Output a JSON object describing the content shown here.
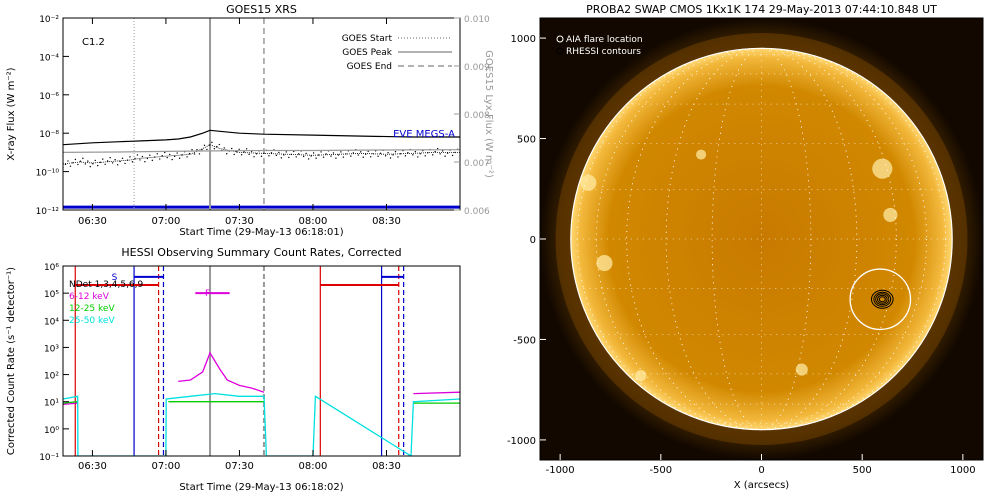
{
  "chart_data": [
    {
      "type": "line",
      "title": "GOES15 XRS",
      "xlabel": "Start Time (29-May-13 06:18:01)",
      "ylabel": "X-ray Flux (W m⁻²)",
      "ylabel_right": "GOES15 Lyx Flux (W m⁻²)",
      "flare_class": "C1.2",
      "xlim": [
        378,
        540
      ],
      "ylim_log": [
        -12,
        -2
      ],
      "ylim_right": [
        0.006,
        0.01
      ],
      "x_ticks": [
        {
          "v": 390,
          "label": "06:30"
        },
        {
          "v": 420,
          "label": "07:00"
        },
        {
          "v": 450,
          "label": "07:30"
        },
        {
          "v": 480,
          "label": "08:00"
        },
        {
          "v": 510,
          "label": "08:30"
        }
      ],
      "y_ticks": [
        {
          "v": -12,
          "label": "10⁻¹²"
        },
        {
          "v": -10,
          "label": "10⁻¹⁰"
        },
        {
          "v": -8,
          "label": "10⁻⁸"
        },
        {
          "v": -6,
          "label": "10⁻⁶"
        },
        {
          "v": -4,
          "label": "10⁻⁴"
        },
        {
          "v": -2,
          "label": "10⁻²"
        }
      ],
      "y_right_ticks": [
        {
          "v": 0.006,
          "label": "0.006"
        },
        {
          "v": 0.007,
          "label": "0.007"
        },
        {
          "v": 0.008,
          "label": "0.008"
        },
        {
          "v": 0.009,
          "label": "0.009"
        },
        {
          "v": 0.01,
          "label": "0.010"
        }
      ],
      "legend": [
        {
          "label": "GOES Start",
          "style": "dotted",
          "color": "#999999"
        },
        {
          "label": "GOES Peak",
          "style": "solid",
          "color": "#999999"
        },
        {
          "label": "GOES End",
          "style": "dashed",
          "color": "#999999"
        }
      ],
      "markers": {
        "start": 407,
        "peak": 438,
        "end": 460
      },
      "eve_label": "EVE MEGS-A",
      "eve_color": "#0000cc",
      "series": [
        {
          "color": "#000000",
          "x": [
            378,
            390,
            400,
            410,
            420,
            425,
            430,
            435,
            438,
            442,
            450,
            460,
            480,
            500,
            520,
            540
          ],
          "y": [
            -8.6,
            -8.5,
            -8.45,
            -8.4,
            -8.35,
            -8.3,
            -8.2,
            -8.0,
            -7.85,
            -7.9,
            -8.0,
            -8.05,
            -8.1,
            -8.15,
            -8.2,
            -8.2
          ]
        },
        {
          "color": "#000000",
          "style": "noisy",
          "x": [
            378,
            385,
            390,
            395,
            400,
            405,
            410,
            415,
            420,
            430,
            435,
            438,
            442,
            450,
            460,
            470,
            480,
            490,
            500,
            510,
            520,
            530,
            540
          ],
          "y": [
            -9.6,
            -9.5,
            -9.55,
            -9.5,
            -9.45,
            -9.4,
            -9.3,
            -9.25,
            -9.2,
            -9.1,
            -8.8,
            -8.6,
            -8.8,
            -9.0,
            -9.05,
            -9.1,
            -9.15,
            -9.1,
            -9.05,
            -9.1,
            -9.05,
            -9.0,
            -9.0
          ]
        },
        {
          "color": "#999999",
          "x": [
            378,
            400,
            420,
            440,
            460,
            480,
            500,
            520,
            540
          ],
          "y": [
            -9.0,
            -8.98,
            -8.95,
            -8.92,
            -8.9,
            -8.9,
            -8.88,
            -8.87,
            -8.86
          ]
        }
      ],
      "baseline": {
        "color": "#0000cc",
        "y": -11.85
      }
    },
    {
      "type": "line",
      "title": "HESSI Observing Summary Count Rates, Corrected",
      "xlabel": "Start Time (29-May-13 06:18:02)",
      "ylabel": "Corrected Count Rate (s⁻¹ detector⁻¹)",
      "xlim": [
        378,
        540
      ],
      "ylim_log": [
        -1,
        6
      ],
      "x_ticks": [
        {
          "v": 390,
          "label": "06:30"
        },
        {
          "v": 420,
          "label": "07:00"
        },
        {
          "v": 450,
          "label": "07:30"
        },
        {
          "v": 480,
          "label": "08:00"
        },
        {
          "v": 510,
          "label": "08:30"
        }
      ],
      "y_ticks": [
        {
          "v": -1,
          "label": "10⁻¹"
        },
        {
          "v": 0,
          "label": "10⁰"
        },
        {
          "v": 1,
          "label": "10¹"
        },
        {
          "v": 2,
          "label": "10²"
        },
        {
          "v": 3,
          "label": "10³"
        },
        {
          "v": 4,
          "label": "10⁴"
        },
        {
          "v": 5,
          "label": "10⁵"
        },
        {
          "v": 6,
          "label": "10⁶"
        }
      ],
      "legend": [
        {
          "label": "NDet 1,3,4,5,6,9",
          "color": "#000000"
        },
        {
          "label": "6-12 keV",
          "color": "#dd00dd"
        },
        {
          "label": "12-25 keV",
          "color": "#00cc00"
        },
        {
          "label": "25-50 keV",
          "color": "#00e0e0"
        }
      ],
      "flag_labels": [
        {
          "label": "S",
          "x": 399,
          "y": 5.6,
          "color": "#0000cc"
        },
        {
          "label": "F",
          "x": 437,
          "y": 5.0,
          "color": "#dd00dd"
        }
      ],
      "series": [
        {
          "name": "6-12 keV",
          "color": "#dd00dd",
          "x": [
            378,
            384,
            385,
            420,
            425,
            430,
            435,
            438,
            442,
            445,
            450,
            455,
            460,
            462,
            480,
            520,
            521,
            540
          ],
          "y": [
            0.9,
            0.95,
            null,
            null,
            1.75,
            1.8,
            2.1,
            2.8,
            2.2,
            1.8,
            1.6,
            1.5,
            1.35,
            null,
            null,
            null,
            1.3,
            1.35
          ]
        },
        {
          "name": "12-25 keV",
          "color": "#00cc00",
          "x": [
            378,
            384,
            385,
            420,
            421,
            440,
            460,
            462,
            480,
            481,
            520,
            521,
            540
          ],
          "y": [
            0.95,
            1.0,
            null,
            null,
            1.0,
            1.0,
            1.0,
            null,
            null,
            null,
            null,
            0.95,
            0.95
          ]
        },
        {
          "name": "25-50 keV",
          "color": "#00e0e0",
          "x": [
            378,
            384,
            384.1,
            420,
            420.1,
            430,
            440,
            450,
            460,
            461,
            480,
            481,
            520,
            521,
            540
          ],
          "y": [
            1.1,
            1.2,
            -1,
            -1,
            1.1,
            1.2,
            1.3,
            1.2,
            1.2,
            -1,
            -1,
            1.2,
            -1,
            1.0,
            1.1
          ]
        }
      ],
      "lines_vertical": [
        {
          "x": 383,
          "color": "#dd0000",
          "style": "solid"
        },
        {
          "x": 407,
          "color": "#0000cc",
          "style": "solid"
        },
        {
          "x": 417,
          "color": "#dd0000",
          "style": "dashed"
        },
        {
          "x": 419,
          "color": "#0000cc",
          "style": "dashed"
        },
        {
          "x": 438,
          "color": "#999999",
          "style": "solid"
        },
        {
          "x": 460,
          "color": "#999999",
          "style": "dashed"
        },
        {
          "x": 483,
          "color": "#dd0000",
          "style": "solid"
        },
        {
          "x": 508,
          "color": "#0000cc",
          "style": "solid"
        },
        {
          "x": 515,
          "color": "#dd0000",
          "style": "dashed"
        },
        {
          "x": 517,
          "color": "#0000cc",
          "style": "dashed"
        }
      ],
      "night_bars": [
        {
          "x1": 383,
          "x2": 417,
          "y": 5.3,
          "color": "#dd0000"
        },
        {
          "x1": 483,
          "x2": 515,
          "y": 5.3,
          "color": "#dd0000"
        }
      ],
      "saa_bars": [
        {
          "x1": 407,
          "x2": 419,
          "y": 5.6,
          "color": "#0000cc"
        },
        {
          "x1": 508,
          "x2": 517,
          "y": 5.6,
          "color": "#0000cc"
        }
      ]
    },
    {
      "type": "heatmap",
      "title": "PROBA2 SWAP CMOS 1Kx1K 174 29-May-2013 07:44:10.848 UT",
      "xlabel": "X (arcsecs)",
      "xlim": [
        -1100,
        1100
      ],
      "ylim": [
        -1100,
        1100
      ],
      "x_ticks": [
        -1000,
        -500,
        0,
        500,
        1000
      ],
      "y_ticks": [
        -1000,
        -500,
        0,
        500,
        1000
      ],
      "legend": [
        "AIA flare location",
        "RHESSI contours"
      ],
      "sun_radius": 947,
      "flare": {
        "x": 590,
        "y": -300,
        "r": 150
      }
    }
  ]
}
